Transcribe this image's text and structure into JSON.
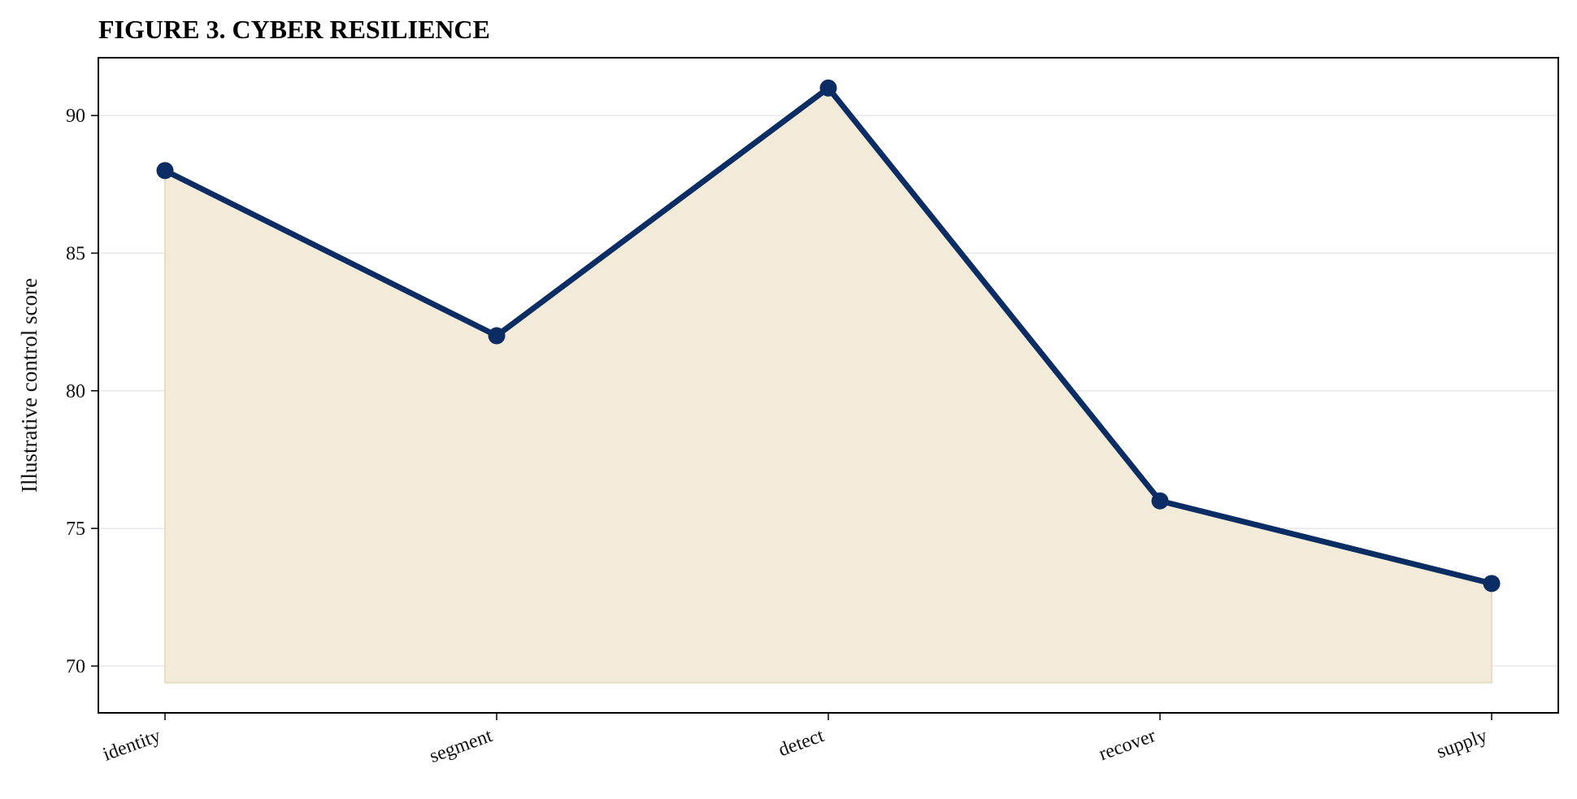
{
  "chart_data": {
    "type": "area",
    "title": "FIGURE 3. CYBER RESILIENCE",
    "xlabel": "",
    "ylabel": "Illustrative control score",
    "categories": [
      "identity",
      "segment",
      "detect",
      "recover",
      "supply"
    ],
    "series": [
      {
        "values": [
          88,
          82,
          91,
          76,
          73
        ]
      }
    ],
    "ylim": [
      68.3,
      92.1
    ],
    "yticks": [
      70,
      75,
      80,
      85,
      90
    ],
    "area_baseline": 69.4,
    "grid": "horizontal",
    "colors": {
      "line": "#0b2d63",
      "fill": "#f2ebda",
      "fill_edge": "#e8ddbf",
      "grid": "#e6e6e6",
      "frame": "#000000"
    }
  }
}
